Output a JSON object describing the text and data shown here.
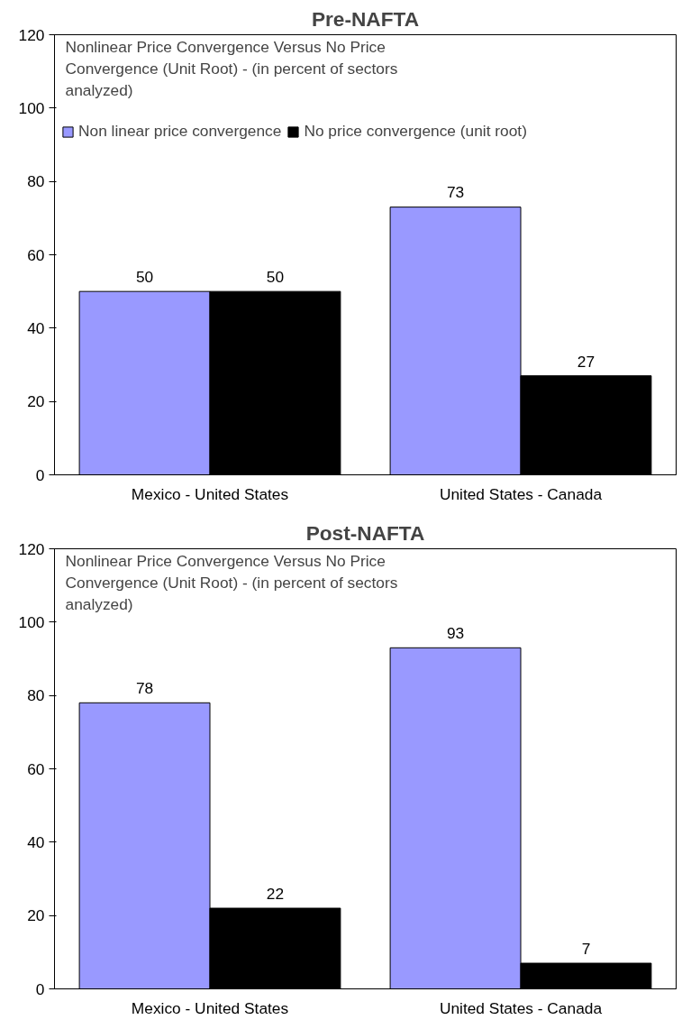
{
  "chart_data": [
    {
      "type": "bar",
      "title": "Pre-NAFTA",
      "categories": [
        "Mexico - United States",
        "United States - Canada"
      ],
      "series": [
        {
          "name": "Non linear price convergence",
          "color": "#9999ff",
          "values": [
            50,
            73
          ]
        },
        {
          "name": "No price convergence (unit root)",
          "color": "#000000",
          "values": [
            50,
            27
          ]
        }
      ],
      "ylim": [
        0,
        120
      ],
      "yticks": [
        0,
        20,
        40,
        60,
        80,
        100,
        120
      ],
      "grid": false,
      "legend": "top",
      "data_labels": true,
      "annotations": [
        "Nonlinear Price Convergence Versus No Price Convergence (Unit Root) - (in percent of sectors analyzed)"
      ]
    },
    {
      "type": "bar",
      "title": "Post-NAFTA",
      "categories": [
        "Mexico - United States",
        "United States - Canada"
      ],
      "series": [
        {
          "color": "#9999ff",
          "values": [
            78,
            93
          ]
        },
        {
          "color": "#000000",
          "values": [
            22,
            7
          ]
        }
      ],
      "ylim": [
        0,
        120
      ],
      "yticks": [
        0,
        20,
        40,
        60,
        80,
        100,
        120
      ],
      "grid": false,
      "data_labels": true,
      "annotations": [
        "Nonlinear Price Convergence Versus No Price Convergence (Unit Root) - (in percent of sectors analyzed)"
      ]
    }
  ]
}
